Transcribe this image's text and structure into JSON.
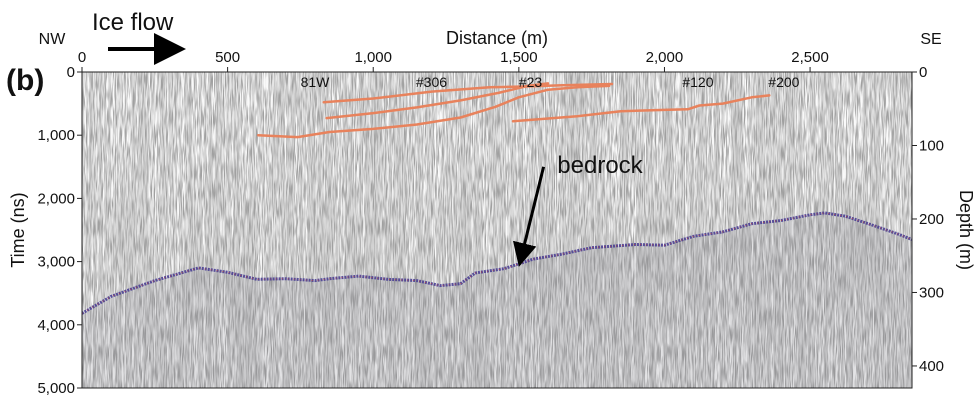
{
  "chart_data": {
    "type": "line",
    "panel_label": "(b)",
    "annotation_top": "Ice flow",
    "direction_left": "NW",
    "direction_right": "SE",
    "xlabel": "Distance (m)",
    "ylabel": "Time (ns)",
    "y2label": "Depth (m)",
    "xlim": [
      0,
      2850
    ],
    "ylim": [
      5000,
      0
    ],
    "y2lim": [
      430,
      0
    ],
    "x_ticks": [
      0,
      500,
      1000,
      1500,
      2000,
      2500
    ],
    "x_tick_labels": [
      "0",
      "500",
      "1,000",
      "1,500",
      "2,000",
      "2,500"
    ],
    "y_ticks": [
      0,
      1000,
      2000,
      3000,
      4000,
      5000
    ],
    "y_tick_labels": [
      "0",
      "1,000",
      "2,000",
      "3,000",
      "4,000",
      "5,000"
    ],
    "y2_ticks": [
      0,
      100,
      200,
      300,
      400
    ],
    "y2_tick_labels": [
      "0",
      "100",
      "200",
      "300",
      "400"
    ],
    "bedrock_label": "bedrock",
    "bedrock_arrow": {
      "from": [
        1585,
        1500
      ],
      "to": [
        1510,
        2900
      ]
    },
    "core_labels": [
      {
        "text": "81W",
        "x": 800
      },
      {
        "text": "#306",
        "x": 1200
      },
      {
        "text": "#23",
        "x": 1540
      },
      {
        "text": "#120",
        "x": 2115
      },
      {
        "text": "#200",
        "x": 2410
      }
    ],
    "colors": {
      "internal_layers": "#e8825c",
      "bedrock_reflector": "#4a3f94",
      "bedrock_highlight": "#c23a3a",
      "noise": "#9a9a9a"
    },
    "series": [
      {
        "values": [
          [
            605,
            1000
          ],
          [
            740,
            1030
          ],
          [
            850,
            950
          ],
          [
            1000,
            900
          ],
          [
            1150,
            830
          ],
          [
            1300,
            720
          ],
          [
            1420,
            550
          ],
          [
            1500,
            400
          ],
          [
            1600,
            280
          ],
          [
            1700,
            240
          ],
          [
            1810,
            220
          ]
        ]
      },
      {
        "values": [
          [
            840,
            730
          ],
          [
            1000,
            650
          ],
          [
            1150,
            560
          ],
          [
            1300,
            450
          ],
          [
            1430,
            330
          ],
          [
            1530,
            220
          ],
          [
            1600,
            180
          ]
        ]
      },
      {
        "values": [
          [
            830,
            480
          ],
          [
            1000,
            420
          ],
          [
            1200,
            310
          ],
          [
            1400,
            240
          ],
          [
            1520,
            230
          ],
          [
            1650,
            210
          ],
          [
            1820,
            190
          ]
        ]
      },
      {
        "values": [
          [
            1480,
            780
          ],
          [
            1700,
            700
          ],
          [
            1850,
            620
          ],
          [
            2000,
            600
          ],
          [
            2080,
            590
          ],
          [
            2120,
            530
          ],
          [
            2200,
            500
          ],
          [
            2300,
            400
          ],
          [
            2360,
            370
          ]
        ]
      },
      {
        "values": [
          [
            0,
            3820
          ],
          [
            100,
            3550
          ],
          [
            250,
            3300
          ],
          [
            400,
            3100
          ],
          [
            500,
            3170
          ],
          [
            600,
            3280
          ],
          [
            700,
            3270
          ],
          [
            800,
            3300
          ],
          [
            850,
            3270
          ],
          [
            950,
            3230
          ],
          [
            1050,
            3280
          ],
          [
            1150,
            3300
          ],
          [
            1230,
            3380
          ],
          [
            1300,
            3350
          ],
          [
            1350,
            3180
          ],
          [
            1450,
            3110
          ],
          [
            1550,
            2960
          ],
          [
            1650,
            2880
          ],
          [
            1750,
            2780
          ],
          [
            1900,
            2730
          ],
          [
            2000,
            2740
          ],
          [
            2100,
            2600
          ],
          [
            2200,
            2530
          ],
          [
            2300,
            2400
          ],
          [
            2400,
            2350
          ],
          [
            2500,
            2260
          ],
          [
            2550,
            2230
          ],
          [
            2620,
            2280
          ],
          [
            2700,
            2400
          ],
          [
            2800,
            2560
          ],
          [
            2850,
            2650
          ]
        ]
      }
    ]
  }
}
